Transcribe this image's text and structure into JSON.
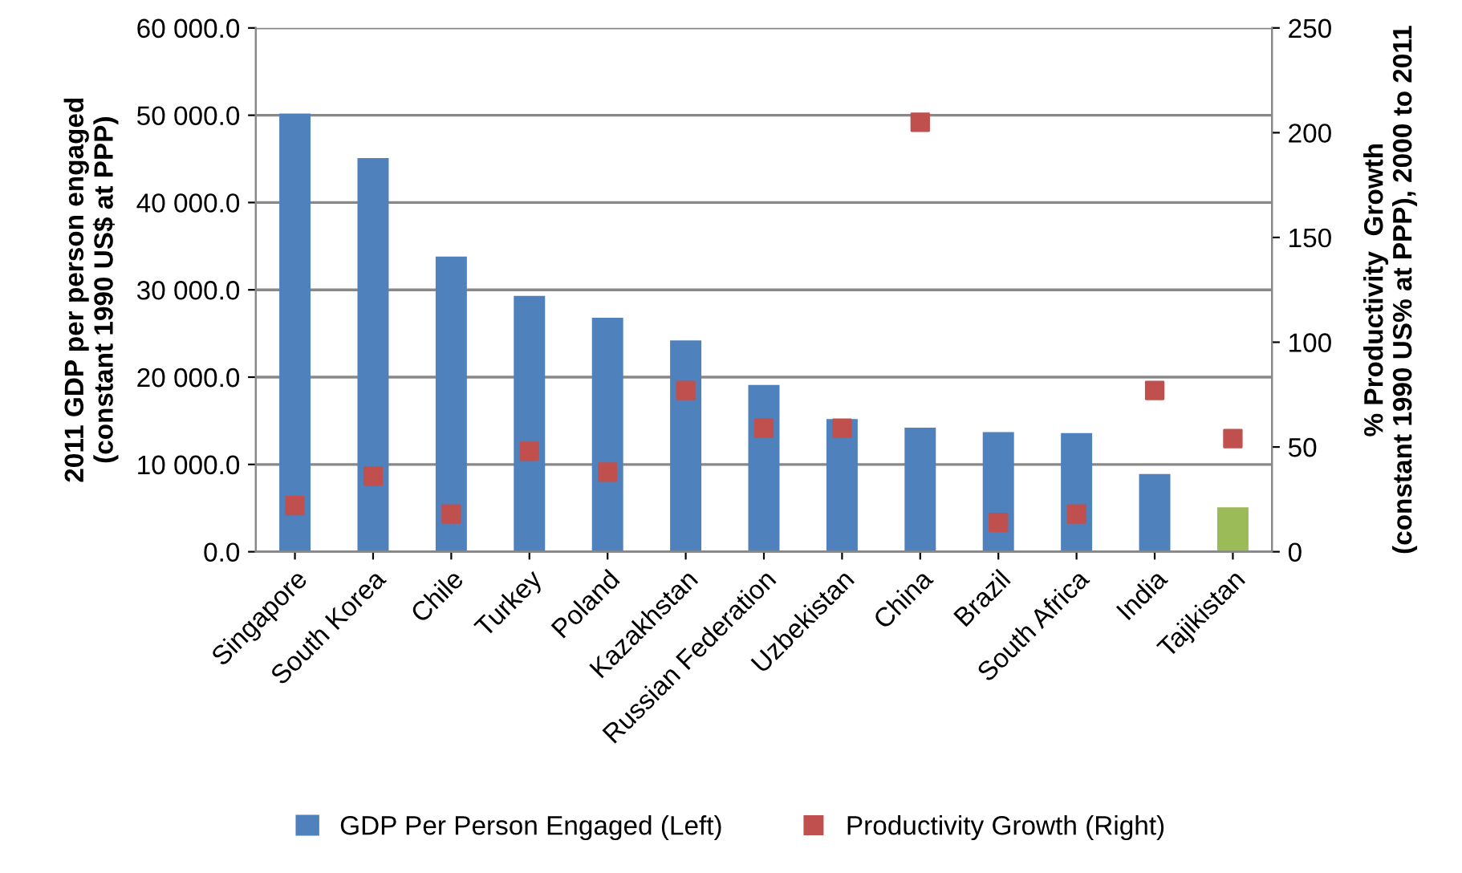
{
  "chart_data": {
    "type": "bar",
    "categories": [
      "Singapore",
      "South Korea",
      "Chile",
      "Turkey",
      "Poland",
      "Kazakhstan",
      "Russian Federation",
      "Uzbekistan",
      "China",
      "Brazil",
      "South Africa",
      "India",
      "Tajikistan"
    ],
    "series": [
      {
        "name": "GDP Per Person Engaged (Left)",
        "color": "#4f81bd",
        "colors": [
          "#4f81bd",
          "#4f81bd",
          "#4f81bd",
          "#4f81bd",
          "#4f81bd",
          "#4f81bd",
          "#4f81bd",
          "#4f81bd",
          "#4f81bd",
          "#4f81bd",
          "#4f81bd",
          "#4f81bd",
          "#9bbb59"
        ],
        "values": [
          50200,
          45100,
          33800,
          29300,
          26800,
          24200,
          19100,
          15200,
          14200,
          13700,
          13600,
          8900,
          5100
        ]
      },
      {
        "name": "Productivity Growth (Right)",
        "type": "scatter",
        "axis": "y2",
        "color": "#c0504d",
        "marker": "square",
        "values": [
          22,
          36,
          18,
          48,
          38,
          77,
          59,
          59,
          205,
          14,
          18,
          77,
          54
        ]
      }
    ],
    "ylabel": "2011 GDP per person engaged\n(constant 1990 US$ at PPP)",
    "y2label": "% Productivity  Growth\n(constant 1990 US% at PPP), 2000 to 2011",
    "ylim": [
      0,
      60000
    ],
    "yticks": [
      {
        "value": 0,
        "label": "0.0"
      },
      {
        "value": 10000,
        "label": "10 000.0"
      },
      {
        "value": 20000,
        "label": "20 000.0"
      },
      {
        "value": 30000,
        "label": "30 000.0"
      },
      {
        "value": 40000,
        "label": "40 000.0"
      },
      {
        "value": 50000,
        "label": "50 000.0"
      },
      {
        "value": 60000,
        "label": "60 000.0"
      }
    ],
    "y2lim": [
      0,
      250
    ],
    "y2ticks": [
      0,
      50,
      100,
      150,
      200,
      250
    ],
    "grid": "y",
    "legend": "bottom"
  }
}
